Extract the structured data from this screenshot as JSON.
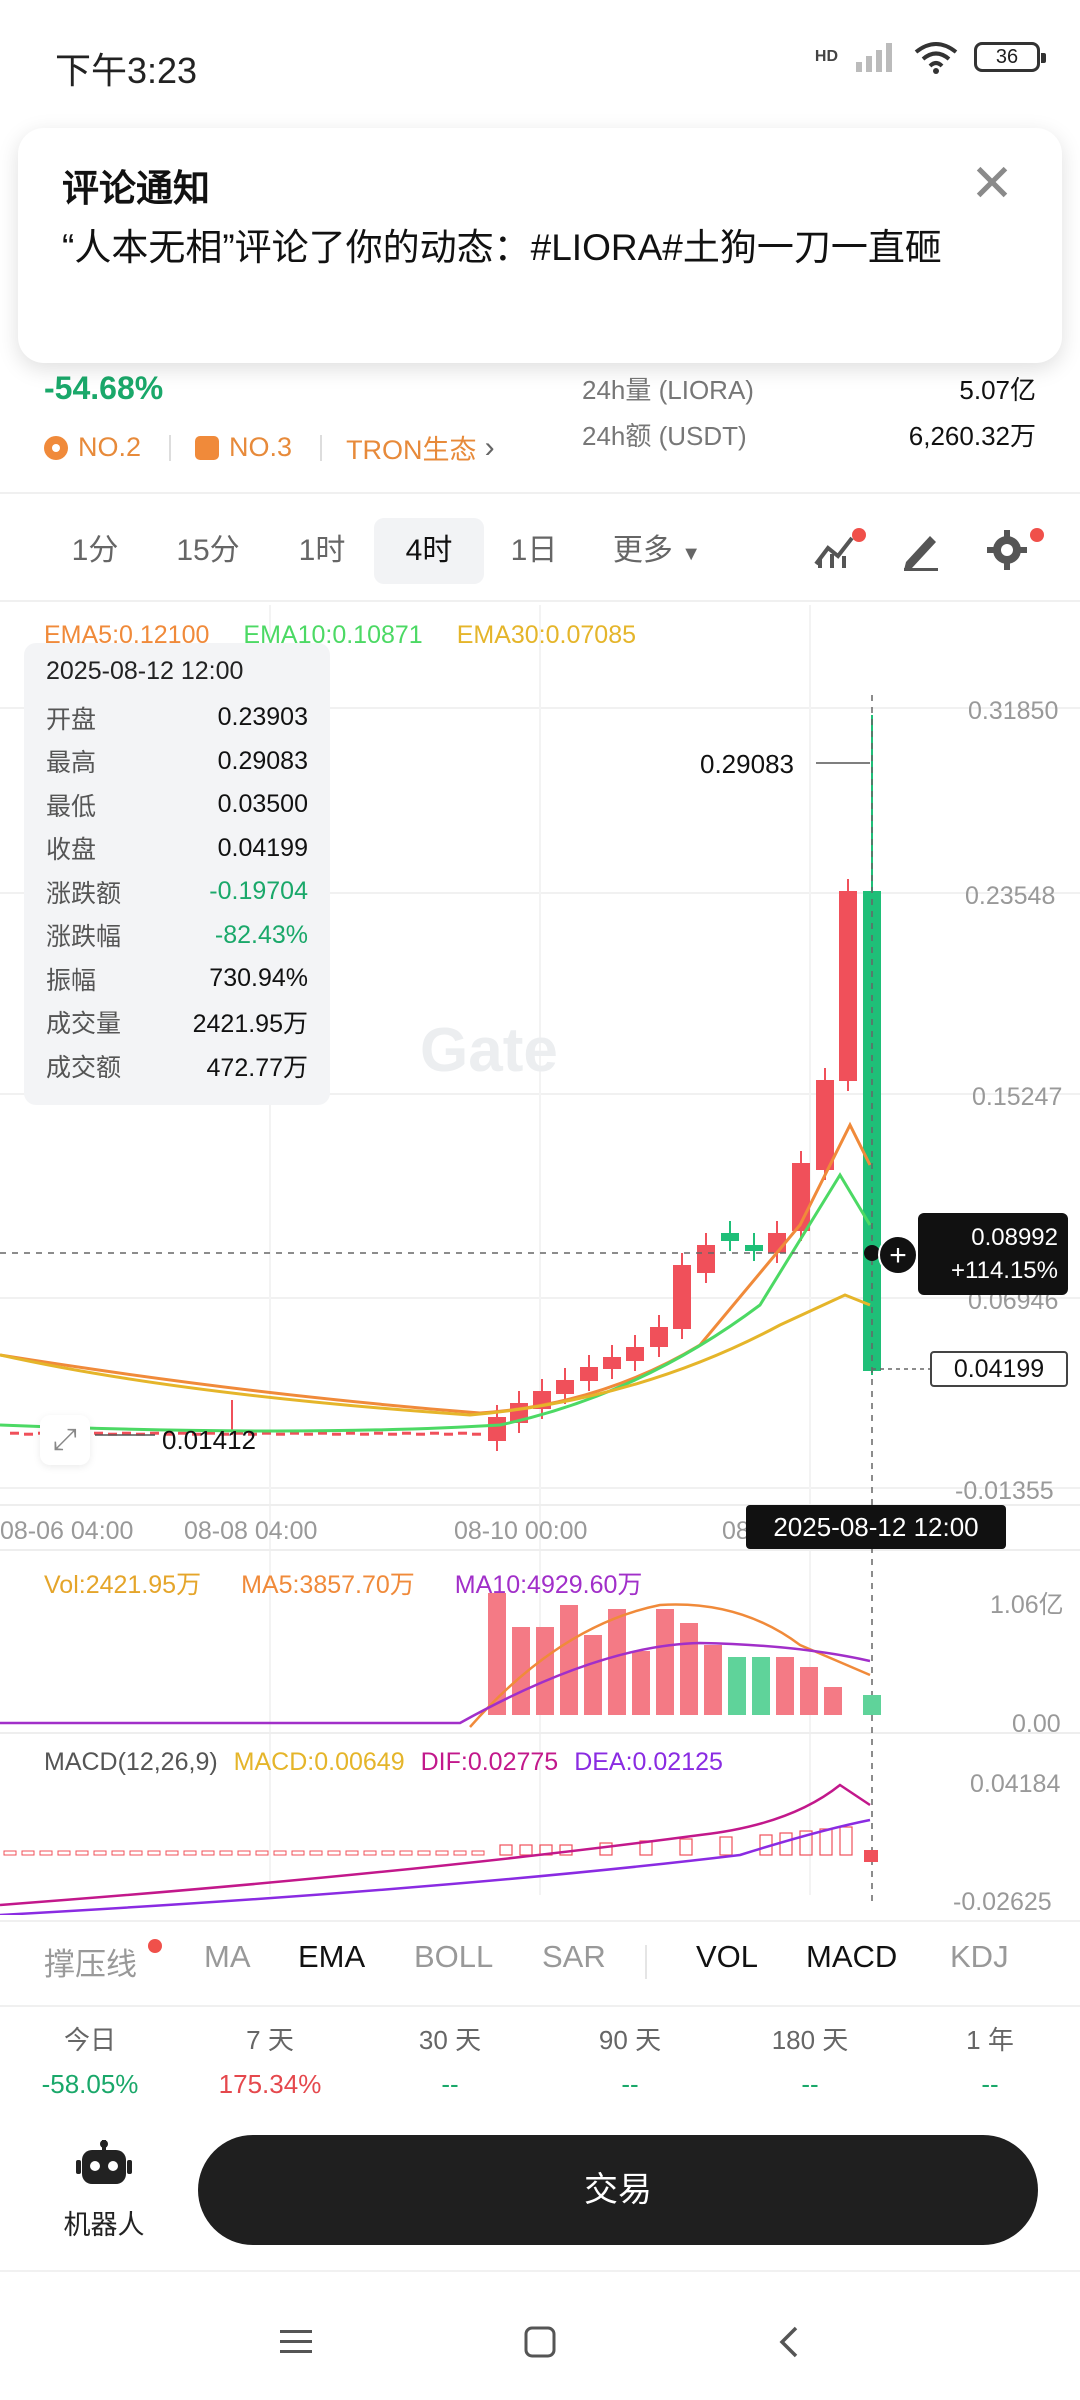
{
  "status_bar": {
    "time": "下午3:23",
    "battery": "36",
    "network": "HD"
  },
  "notification": {
    "title": "评论通知",
    "body": "“人本无相”评论了你的动态：#LIORA#土狗一刀一直砸"
  },
  "header": {
    "change_pct": "-54.68%",
    "ranks": [
      "NO.2",
      "NO.3"
    ],
    "ecosystem": "TRON生态",
    "vol_label": "24h量 (LIORA)",
    "vol_value": "5.07亿",
    "amt_label": "24h额 (USDT)",
    "amt_value": "6,260.32万"
  },
  "periods": [
    "1分",
    "15分",
    "1时",
    "4时",
    "1日",
    "更多"
  ],
  "active_period": "4时",
  "ema_legend": {
    "ema5": "EMA5:0.12100",
    "ema10": "EMA10:0.10871",
    "ema30": "EMA30:0.07085"
  },
  "ohlc_panel": {
    "datetime": "2025-08-12 12:00",
    "rows": [
      {
        "k": "开盘",
        "v": "0.23903"
      },
      {
        "k": "最高",
        "v": "0.29083"
      },
      {
        "k": "最低",
        "v": "0.03500"
      },
      {
        "k": "收盘",
        "v": "0.04199"
      },
      {
        "k": "涨跌额",
        "v": "-0.19704"
      },
      {
        "k": "涨跌幅",
        "v": "-82.43%"
      },
      {
        "k": "振幅",
        "v": "730.94%"
      },
      {
        "k": "成交量",
        "v": "2421.95万"
      },
      {
        "k": "成交额",
        "v": "472.77万"
      }
    ]
  },
  "watermark": "Gate",
  "price_axis": [
    "0.31850",
    "0.23548",
    "0.15247",
    "0.06946",
    "-0.01355"
  ],
  "x_axis": [
    "08-06 04:00",
    "08-08 04:00",
    "08-10 00:00",
    "08"
  ],
  "crosshair": {
    "time": "2025-08-12 12:00",
    "price": "0.08992",
    "pct": "+114.15%",
    "last": "0.04199"
  },
  "high_tag": "0.29083",
  "low_tag": "0.01412",
  "vol_legend": {
    "vol": "Vol:2421.95万",
    "ma5": "MA5:3857.70万",
    "ma10": "MA10:4929.60万"
  },
  "vol_axis": [
    "1.06亿",
    "0.00"
  ],
  "macd_legend": {
    "name": "MACD(12,26,9)",
    "macd": "MACD:0.00649",
    "dif": "DIF:0.02775",
    "dea": "DEA:0.02125"
  },
  "macd_axis": [
    "0.04184",
    "-0.02625"
  ],
  "indicator_tabs": [
    "撑压线",
    "MA",
    "EMA",
    "BOLL",
    "SAR",
    "VOL",
    "MACD",
    "KDJ"
  ],
  "performance": [
    {
      "label": "今日",
      "value": "-58.05%"
    },
    {
      "label": "7 天",
      "value": "175.34%"
    },
    {
      "label": "30 天",
      "value": "--"
    },
    {
      "label": "90 天",
      "value": "--"
    },
    {
      "label": "180 天",
      "value": "--"
    },
    {
      "label": "1 年",
      "value": "--"
    }
  ],
  "robot_label": "机器人",
  "trade_label": "交易",
  "colors": {
    "up": "#f0505a",
    "down": "#1fbf78",
    "ema5": "#f08a3a",
    "ema10": "#4cd964",
    "ema30": "#e5b52a",
    "macd_pink": "#c2188b",
    "macd_purple": "#8a2be2"
  }
}
